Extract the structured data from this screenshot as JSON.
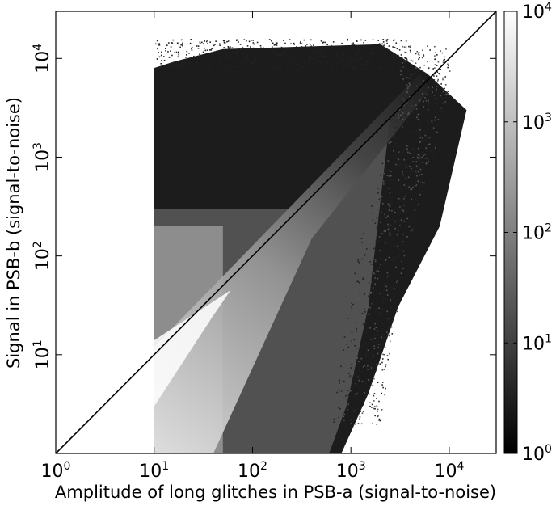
{
  "chart_data": {
    "type": "heatmap",
    "title": "",
    "xlabel": "Amplitude of long glitches in PSB-a (signal-to-noise)",
    "ylabel": "Signal in PSB-b (signal-to-noise)",
    "x_scale": "log",
    "y_scale": "log",
    "xlim": [
      1,
      30000
    ],
    "ylim": [
      1,
      30000
    ],
    "x_ticks": [
      {
        "base": "10",
        "exp": "0",
        "value": 1
      },
      {
        "base": "10",
        "exp": "1",
        "value": 10
      },
      {
        "base": "10",
        "exp": "2",
        "value": 100
      },
      {
        "base": "10",
        "exp": "3",
        "value": 1000
      },
      {
        "base": "10",
        "exp": "4",
        "value": 10000
      }
    ],
    "y_ticks": [
      {
        "base": "10",
        "exp": "1",
        "value": 10
      },
      {
        "base": "10",
        "exp": "2",
        "value": 100
      },
      {
        "base": "10",
        "exp": "3",
        "value": 1000
      },
      {
        "base": "10",
        "exp": "4",
        "value": 10000
      }
    ],
    "reference_line": {
      "label": "y = x",
      "from": [
        1,
        1
      ],
      "to": [
        30000,
        30000
      ],
      "color": "#000000"
    },
    "density_region": {
      "x_min": 10,
      "x_step_at": 50,
      "y_max_at_left": 8000,
      "y_max_overall": 15000,
      "x_max": 15000,
      "ridge": "along y = x"
    },
    "colorbar": {
      "scale": "log",
      "range": [
        1,
        10000
      ],
      "colormap": "grayscale (black = low, white = high)",
      "ticks": [
        {
          "base": "10",
          "exp": "0",
          "value": 1
        },
        {
          "base": "10",
          "exp": "1",
          "value": 10
        },
        {
          "base": "10",
          "exp": "2",
          "value": 100
        },
        {
          "base": "10",
          "exp": "3",
          "value": 1000
        },
        {
          "base": "10",
          "exp": "4",
          "value": 10000
        }
      ]
    },
    "grid": false,
    "legend": "none"
  }
}
